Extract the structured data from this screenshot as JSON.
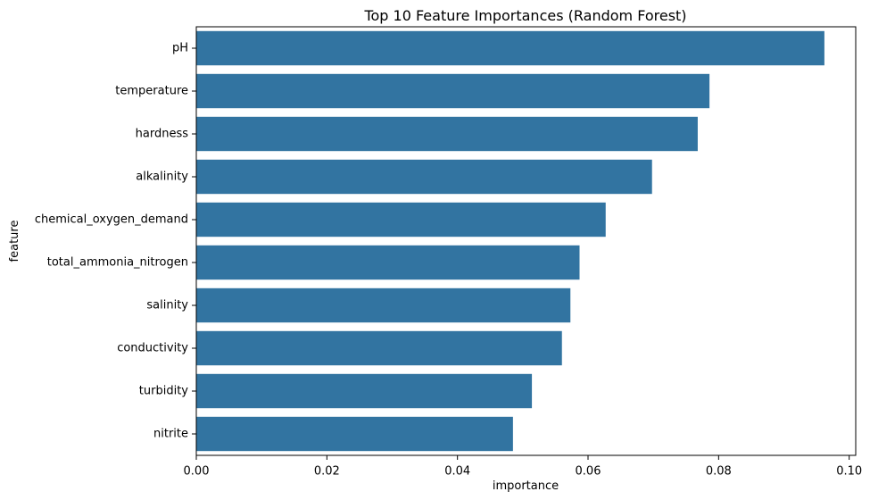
{
  "chart_data": {
    "type": "bar",
    "orientation": "horizontal",
    "title": "Top 10 Feature Importances (Random Forest)",
    "xlabel": "importance",
    "ylabel": "feature",
    "categories": [
      "pH",
      "temperature",
      "hardness",
      "alkalinity",
      "chemical_oxygen_demand",
      "total_ammonia_nitrogen",
      "salinity",
      "conductivity",
      "turbidity",
      "nitrite"
    ],
    "values": [
      0.0962,
      0.0786,
      0.0768,
      0.0698,
      0.0627,
      0.0587,
      0.0573,
      0.056,
      0.0514,
      0.0485
    ],
    "xlim": [
      0,
      0.101
    ],
    "xticks": [
      "0.00",
      "0.02",
      "0.04",
      "0.06",
      "0.08",
      "0.10"
    ],
    "xtick_values": [
      0,
      0.02,
      0.04,
      0.06,
      0.08,
      0.1
    ],
    "bar_color": "#3274a1",
    "grid": false
  }
}
